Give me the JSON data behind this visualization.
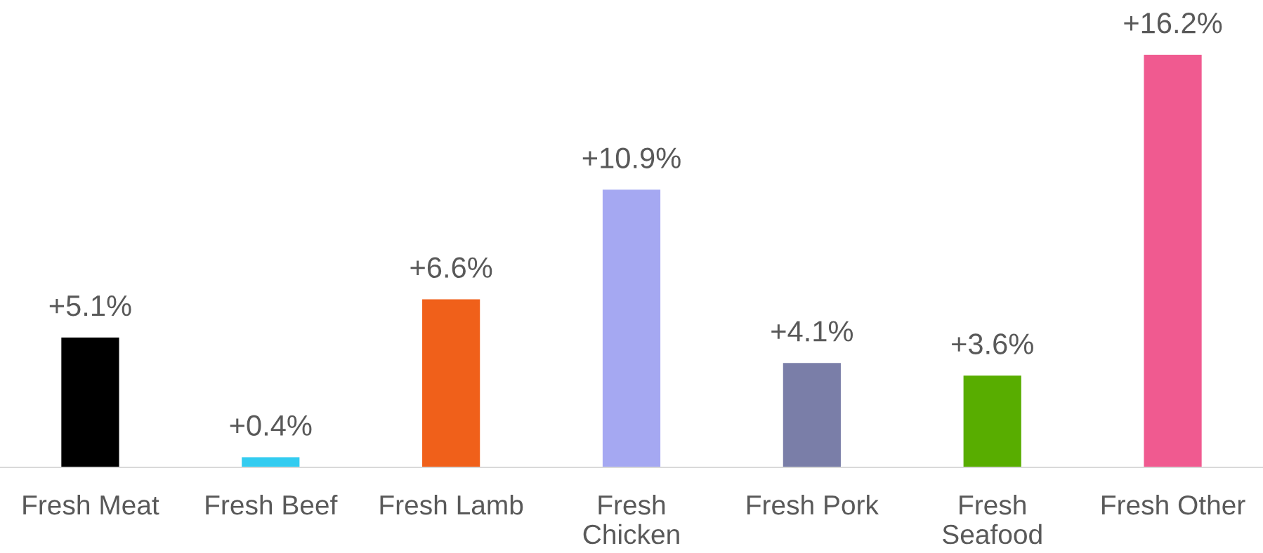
{
  "chart_data": {
    "type": "bar",
    "categories": [
      "Fresh Meat",
      "Fresh Beef",
      "Fresh Lamb",
      "Fresh Chicken",
      "Fresh Pork",
      "Fresh Seafood",
      "Fresh Other"
    ],
    "values": [
      5.1,
      0.4,
      6.6,
      10.9,
      4.1,
      3.6,
      16.2
    ],
    "colors": [
      "#000000",
      "#33ccf0",
      "#f0601a",
      "#a5a8f2",
      "#7a7ea8",
      "#58ad00",
      "#f05a90"
    ],
    "value_labels": [
      "+5.1%",
      "+0.4%",
      "+6.6%",
      "+10.9%",
      "+4.1%",
      "+3.6%",
      "+16.2%"
    ],
    "grid": false,
    "legend": false
  }
}
